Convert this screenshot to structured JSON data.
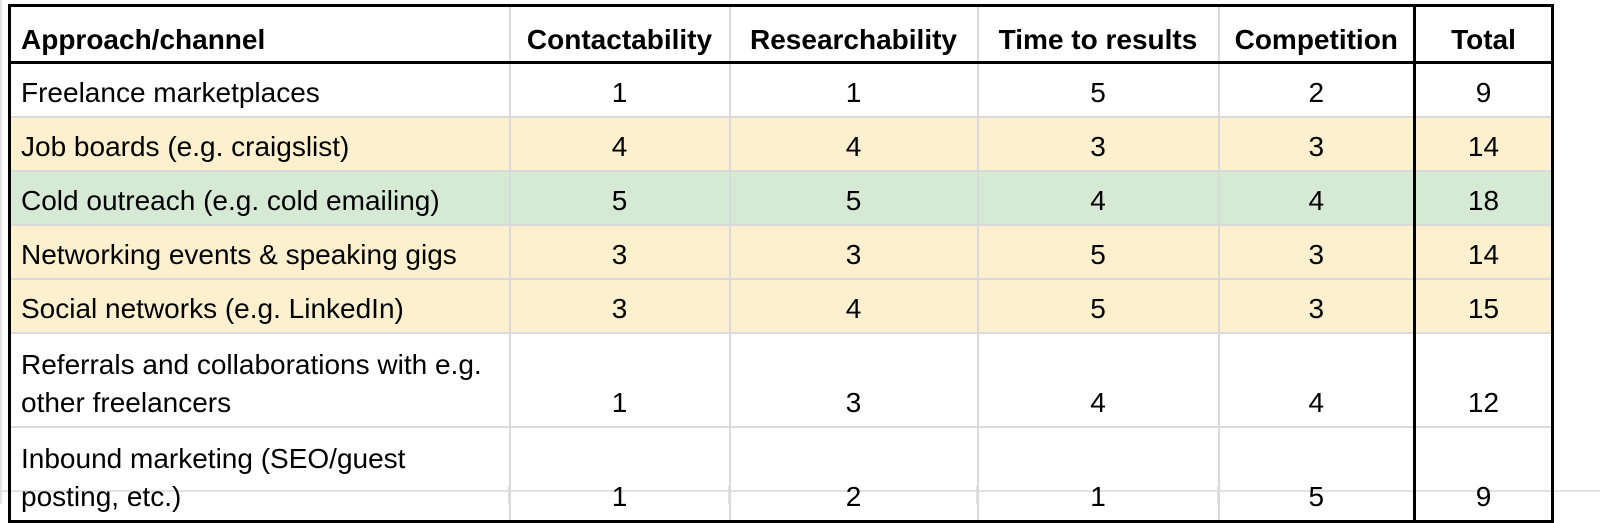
{
  "table": {
    "headers": [
      "Approach/channel",
      "Contactability",
      "Researchability",
      "Time to results",
      "Competition",
      "Total"
    ],
    "rows": [
      {
        "label": "Freelance marketplaces",
        "contactability": "1",
        "researchability": "1",
        "time_to_results": "5",
        "competition": "2",
        "total": "9",
        "highlight": "none"
      },
      {
        "label": "Job boards (e.g. craigslist)",
        "contactability": "4",
        "researchability": "4",
        "time_to_results": "3",
        "competition": "3",
        "total": "14",
        "highlight": "yellow"
      },
      {
        "label": "Cold outreach (e.g. cold emailing)",
        "contactability": "5",
        "researchability": "5",
        "time_to_results": "4",
        "competition": "4",
        "total": "18",
        "highlight": "green"
      },
      {
        "label": "Networking events & speaking gigs",
        "contactability": "3",
        "researchability": "3",
        "time_to_results": "5",
        "competition": "3",
        "total": "14",
        "highlight": "yellow"
      },
      {
        "label": "Social networks (e.g. LinkedIn)",
        "contactability": "3",
        "researchability": "4",
        "time_to_results": "5",
        "competition": "3",
        "total": "15",
        "highlight": "yellow"
      },
      {
        "label": "Referrals and collaborations with e.g. other freelancers",
        "contactability": "1",
        "researchability": "3",
        "time_to_results": "4",
        "competition": "4",
        "total": "12",
        "highlight": "none"
      },
      {
        "label": "Inbound marketing (SEO/guest posting, etc.)",
        "contactability": "1",
        "researchability": "2",
        "time_to_results": "1",
        "competition": "5",
        "total": "9",
        "highlight": "none"
      }
    ]
  },
  "colors": {
    "highlight_yellow": "#fcf0cf",
    "highlight_green": "#d6e9d5",
    "grid": "#dadada",
    "emphasis_border": "#000000"
  }
}
